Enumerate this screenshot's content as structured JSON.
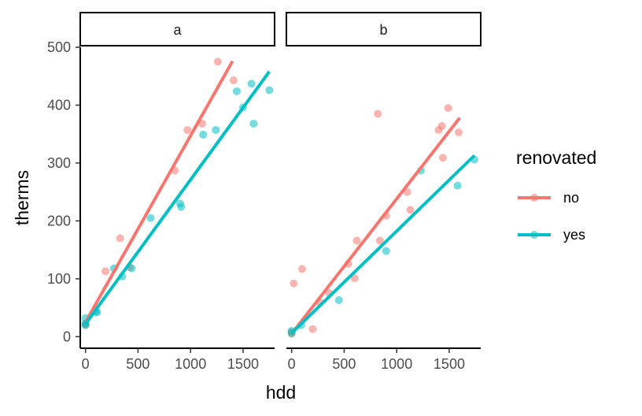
{
  "chart_data": {
    "type": "scatter",
    "xlabel": "hdd",
    "ylabel": "therms",
    "xlim": [
      -50,
      1800
    ],
    "ylim": [
      -20,
      500
    ],
    "x_ticks": [
      0,
      500,
      1000,
      1500
    ],
    "x_tick_labels": [
      "0",
      "500",
      "1000",
      "1500"
    ],
    "y_ticks": [
      0,
      100,
      200,
      300,
      400,
      500
    ],
    "y_tick_labels": [
      "0",
      "100",
      "200",
      "300",
      "400",
      "500"
    ],
    "legend": {
      "title": "renovated",
      "position": "right",
      "entries": [
        {
          "label": "no",
          "color": "#F8766D"
        },
        {
          "label": "yes",
          "color": "#00BFC4"
        }
      ]
    },
    "panels": [
      {
        "label": "a",
        "series": [
          {
            "name": "no",
            "color": "#F8766D",
            "points": [
              [
                0,
                20
              ],
              [
                0,
                22
              ],
              [
                190,
                113
              ],
              [
                330,
                170
              ],
              [
                420,
                120
              ],
              [
                850,
                287
              ],
              [
                970,
                357
              ],
              [
                1110,
                368
              ],
              [
                1260,
                475
              ],
              [
                1410,
                443
              ]
            ],
            "fit": {
              "x": [
                0,
                1400
              ],
              "y": [
                25,
                476
              ]
            }
          },
          {
            "name": "yes",
            "color": "#00BFC4",
            "points": [
              [
                0,
                20
              ],
              [
                0,
                23
              ],
              [
                0,
                32
              ],
              [
                100,
                42
              ],
              [
                110,
                43
              ],
              [
                270,
                118
              ],
              [
                350,
                104
              ],
              [
                440,
                118
              ],
              [
                620,
                205
              ],
              [
                900,
                230
              ],
              [
                910,
                224
              ],
              [
                1120,
                349
              ],
              [
                1240,
                357
              ],
              [
                1440,
                424
              ],
              [
                1500,
                396
              ],
              [
                1580,
                437
              ],
              [
                1600,
                368
              ],
              [
                1750,
                426
              ]
            ],
            "fit": {
              "x": [
                0,
                1750
              ],
              "y": [
                22,
                458
              ]
            }
          }
        ]
      },
      {
        "label": "b",
        "series": [
          {
            "name": "no",
            "color": "#F8766D",
            "points": [
              [
                0,
                5
              ],
              [
                0,
                8
              ],
              [
                20,
                92
              ],
              [
                100,
                117
              ],
              [
                200,
                13
              ],
              [
                270,
                59
              ],
              [
                360,
                75
              ],
              [
                540,
                126
              ],
              [
                600,
                101
              ],
              [
                620,
                166
              ],
              [
                820,
                385
              ],
              [
                840,
                166
              ],
              [
                900,
                209
              ],
              [
                1100,
                250
              ],
              [
                1130,
                219
              ],
              [
                1400,
                357
              ],
              [
                1430,
                364
              ],
              [
                1440,
                309
              ],
              [
                1490,
                395
              ],
              [
                1590,
                353
              ]
            ],
            "fit": {
              "x": [
                0,
                1600
              ],
              "y": [
                5,
                378
              ]
            }
          },
          {
            "name": "yes",
            "color": "#00BFC4",
            "points": [
              [
                0,
                6
              ],
              [
                0,
                10
              ],
              [
                90,
                20
              ],
              [
                450,
                63
              ],
              [
                900,
                148
              ],
              [
                1230,
                287
              ],
              [
                1580,
                261
              ],
              [
                1740,
                306
              ]
            ],
            "fit": {
              "x": [
                0,
                1740
              ],
              "y": [
                6,
                313
              ]
            }
          }
        ]
      }
    ]
  }
}
